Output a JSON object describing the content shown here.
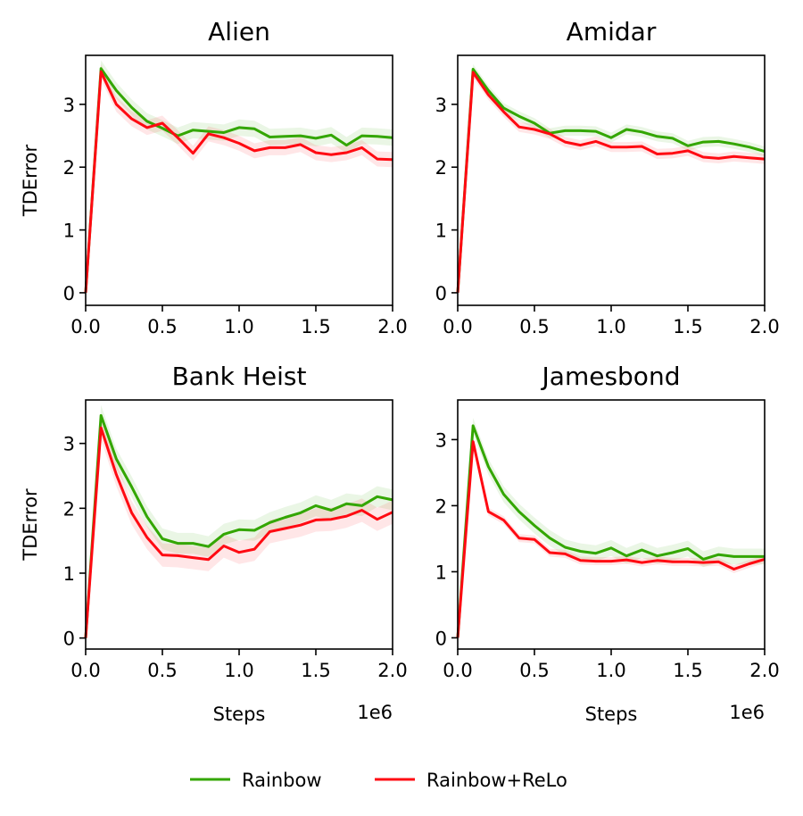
{
  "legend": {
    "entries": [
      {
        "name": "Rainbow",
        "color": "#33a600"
      },
      {
        "name": "Rainbow+ReLo",
        "color": "#ff0a12"
      }
    ],
    "placement": "bottom-center"
  },
  "chart_data": [
    {
      "type": "line",
      "title": "Alien",
      "ylabel": "TDError",
      "xlabel": "",
      "x_offset_label": "",
      "xlim": [
        0,
        2.0
      ],
      "ylim": [
        -0.2,
        3.78
      ],
      "xticks": [
        0,
        0.5,
        1.0,
        1.5,
        2.0
      ],
      "xtick_labels": [
        "0.0",
        "0.5",
        "1.0",
        "1.5",
        "2.0"
      ],
      "yticks": [
        0,
        1,
        2,
        3
      ],
      "ytick_labels": [
        "0",
        "1",
        "2",
        "3"
      ],
      "x": [
        0,
        0.1,
        0.2,
        0.3,
        0.4,
        0.5,
        0.6,
        0.7,
        0.8,
        0.9,
        1.0,
        1.1,
        1.2,
        1.3,
        1.4,
        1.5,
        1.6,
        1.7,
        1.8,
        1.9,
        2.0
      ],
      "series": [
        {
          "name": "Rainbow",
          "color": "#33a600",
          "values": [
            0.0,
            3.57,
            3.22,
            2.95,
            2.73,
            2.62,
            2.5,
            2.59,
            2.57,
            2.55,
            2.63,
            2.61,
            2.48,
            2.49,
            2.5,
            2.46,
            2.51,
            2.35,
            2.5,
            2.49,
            2.47
          ],
          "band": 0.13
        },
        {
          "name": "Rainbow+ReLo",
          "color": "#ff0a12",
          "values": [
            0.0,
            3.52,
            3.0,
            2.77,
            2.63,
            2.7,
            2.47,
            2.22,
            2.53,
            2.47,
            2.38,
            2.26,
            2.31,
            2.31,
            2.36,
            2.23,
            2.2,
            2.23,
            2.31,
            2.13,
            2.12
          ],
          "band": 0.12
        }
      ]
    },
    {
      "type": "line",
      "title": "Amidar",
      "ylabel": "",
      "xlabel": "",
      "x_offset_label": "",
      "xlim": [
        0,
        2.0
      ],
      "ylim": [
        -0.2,
        3.78
      ],
      "xticks": [
        0,
        0.5,
        1.0,
        1.5,
        2.0
      ],
      "xtick_labels": [
        "0.0",
        "0.5",
        "1.0",
        "1.5",
        "2.0"
      ],
      "yticks": [
        0,
        1,
        2,
        3
      ],
      "ytick_labels": [
        "0",
        "1",
        "2",
        "3"
      ],
      "x": [
        0,
        0.1,
        0.2,
        0.3,
        0.4,
        0.5,
        0.6,
        0.7,
        0.8,
        0.9,
        1.0,
        1.1,
        1.2,
        1.3,
        1.4,
        1.5,
        1.6,
        1.7,
        1.8,
        1.9,
        2.0
      ],
      "series": [
        {
          "name": "Rainbow",
          "color": "#33a600",
          "values": [
            0.0,
            3.56,
            3.22,
            2.94,
            2.81,
            2.7,
            2.54,
            2.58,
            2.58,
            2.57,
            2.47,
            2.6,
            2.56,
            2.49,
            2.46,
            2.34,
            2.4,
            2.41,
            2.37,
            2.32,
            2.25
          ],
          "band": 0.08
        },
        {
          "name": "Rainbow+ReLo",
          "color": "#ff0a12",
          "values": [
            0.0,
            3.51,
            3.15,
            2.88,
            2.64,
            2.6,
            2.53,
            2.4,
            2.35,
            2.41,
            2.32,
            2.32,
            2.33,
            2.21,
            2.22,
            2.26,
            2.16,
            2.14,
            2.17,
            2.15,
            2.13
          ],
          "band": 0.08
        }
      ]
    },
    {
      "type": "line",
      "title": "Bank Heist",
      "ylabel": "TDError",
      "xlabel": "Steps",
      "x_offset_label": "1e6",
      "xlim": [
        0,
        2.0
      ],
      "ylim": [
        -0.17,
        3.67
      ],
      "xticks": [
        0,
        0.5,
        1.0,
        1.5,
        2.0
      ],
      "xtick_labels": [
        "0.0",
        "0.5",
        "1.0",
        "1.5",
        "2.0"
      ],
      "yticks": [
        0,
        1,
        2,
        3
      ],
      "ytick_labels": [
        "0",
        "1",
        "2",
        "3"
      ],
      "x": [
        0,
        0.1,
        0.2,
        0.3,
        0.4,
        0.5,
        0.6,
        0.7,
        0.8,
        0.9,
        1.0,
        1.1,
        1.2,
        1.3,
        1.4,
        1.5,
        1.6,
        1.7,
        1.8,
        1.9,
        2.0
      ],
      "series": [
        {
          "name": "Rainbow",
          "color": "#33a600",
          "values": [
            0.0,
            3.43,
            2.76,
            2.33,
            1.87,
            1.53,
            1.46,
            1.46,
            1.41,
            1.6,
            1.67,
            1.66,
            1.78,
            1.86,
            1.93,
            2.04,
            1.97,
            2.07,
            2.04,
            2.18,
            2.13
          ],
          "band": 0.16
        },
        {
          "name": "Rainbow+ReLo",
          "color": "#ff0a12",
          "values": [
            0.0,
            3.24,
            2.52,
            1.93,
            1.55,
            1.28,
            1.27,
            1.24,
            1.21,
            1.42,
            1.32,
            1.37,
            1.64,
            1.69,
            1.74,
            1.82,
            1.83,
            1.88,
            1.97,
            1.83,
            1.94
          ],
          "band": 0.18
        }
      ]
    },
    {
      "type": "line",
      "title": "Jamesbond",
      "ylabel": "",
      "xlabel": "Steps",
      "x_offset_label": "1e6",
      "xlim": [
        0,
        2.0
      ],
      "ylim": [
        -0.17,
        3.6
      ],
      "xticks": [
        0,
        0.5,
        1.0,
        1.5,
        2.0
      ],
      "xtick_labels": [
        "0.0",
        "0.5",
        "1.0",
        "1.5",
        "2.0"
      ],
      "yticks": [
        0,
        1,
        2,
        3
      ],
      "ytick_labels": [
        "0",
        "1",
        "2",
        "3"
      ],
      "x": [
        0,
        0.1,
        0.2,
        0.3,
        0.4,
        0.5,
        0.6,
        0.7,
        0.8,
        0.9,
        1.0,
        1.1,
        1.2,
        1.3,
        1.4,
        1.5,
        1.6,
        1.7,
        1.8,
        1.9,
        2.0
      ],
      "series": [
        {
          "name": "Rainbow",
          "color": "#33a600",
          "values": [
            0.0,
            3.21,
            2.59,
            2.17,
            1.91,
            1.7,
            1.51,
            1.37,
            1.31,
            1.28,
            1.36,
            1.24,
            1.33,
            1.24,
            1.29,
            1.35,
            1.19,
            1.26,
            1.23,
            1.23,
            1.23
          ],
          "band": 0.12
        },
        {
          "name": "Rainbow+ReLo",
          "color": "#ff0a12",
          "values": [
            0.0,
            2.97,
            1.91,
            1.78,
            1.51,
            1.49,
            1.29,
            1.27,
            1.17,
            1.16,
            1.16,
            1.18,
            1.14,
            1.17,
            1.15,
            1.15,
            1.14,
            1.15,
            1.04,
            1.12,
            1.19
          ],
          "band": 0.06
        }
      ]
    }
  ]
}
